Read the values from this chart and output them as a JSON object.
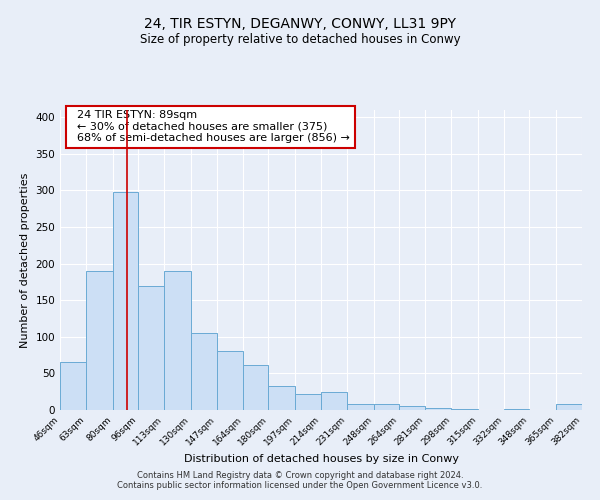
{
  "title": "24, TIR ESTYN, DEGANWY, CONWY, LL31 9PY",
  "subtitle": "Size of property relative to detached houses in Conwy",
  "xlabel": "Distribution of detached houses by size in Conwy",
  "ylabel": "Number of detached properties",
  "bar_color": "#ccdff5",
  "bar_edge_color": "#6aaad4",
  "background_color": "#e8eef8",
  "plot_bg_color": "#e8eef8",
  "grid_color": "#ffffff",
  "vline_x": 89,
  "vline_color": "#cc0000",
  "annotation_title": "24 TIR ESTYN: 89sqm",
  "annotation_line1": "← 30% of detached houses are smaller (375)",
  "annotation_line2": "68% of semi-detached houses are larger (856) →",
  "annotation_box_color": "#ffffff",
  "annotation_box_edge": "#cc0000",
  "footer1": "Contains HM Land Registry data © Crown copyright and database right 2024.",
  "footer2": "Contains public sector information licensed under the Open Government Licence v3.0.",
  "bins": [
    46,
    63,
    80,
    96,
    113,
    130,
    147,
    164,
    180,
    197,
    214,
    231,
    248,
    264,
    281,
    298,
    315,
    332,
    348,
    365,
    382
  ],
  "counts": [
    65,
    190,
    298,
    170,
    190,
    105,
    80,
    62,
    33,
    22,
    25,
    8,
    8,
    5,
    3,
    1,
    0,
    1,
    0,
    8
  ],
  "ylim": [
    0,
    410
  ],
  "xlim": [
    46,
    382
  ],
  "yticks": [
    0,
    50,
    100,
    150,
    200,
    250,
    300,
    350,
    400
  ]
}
